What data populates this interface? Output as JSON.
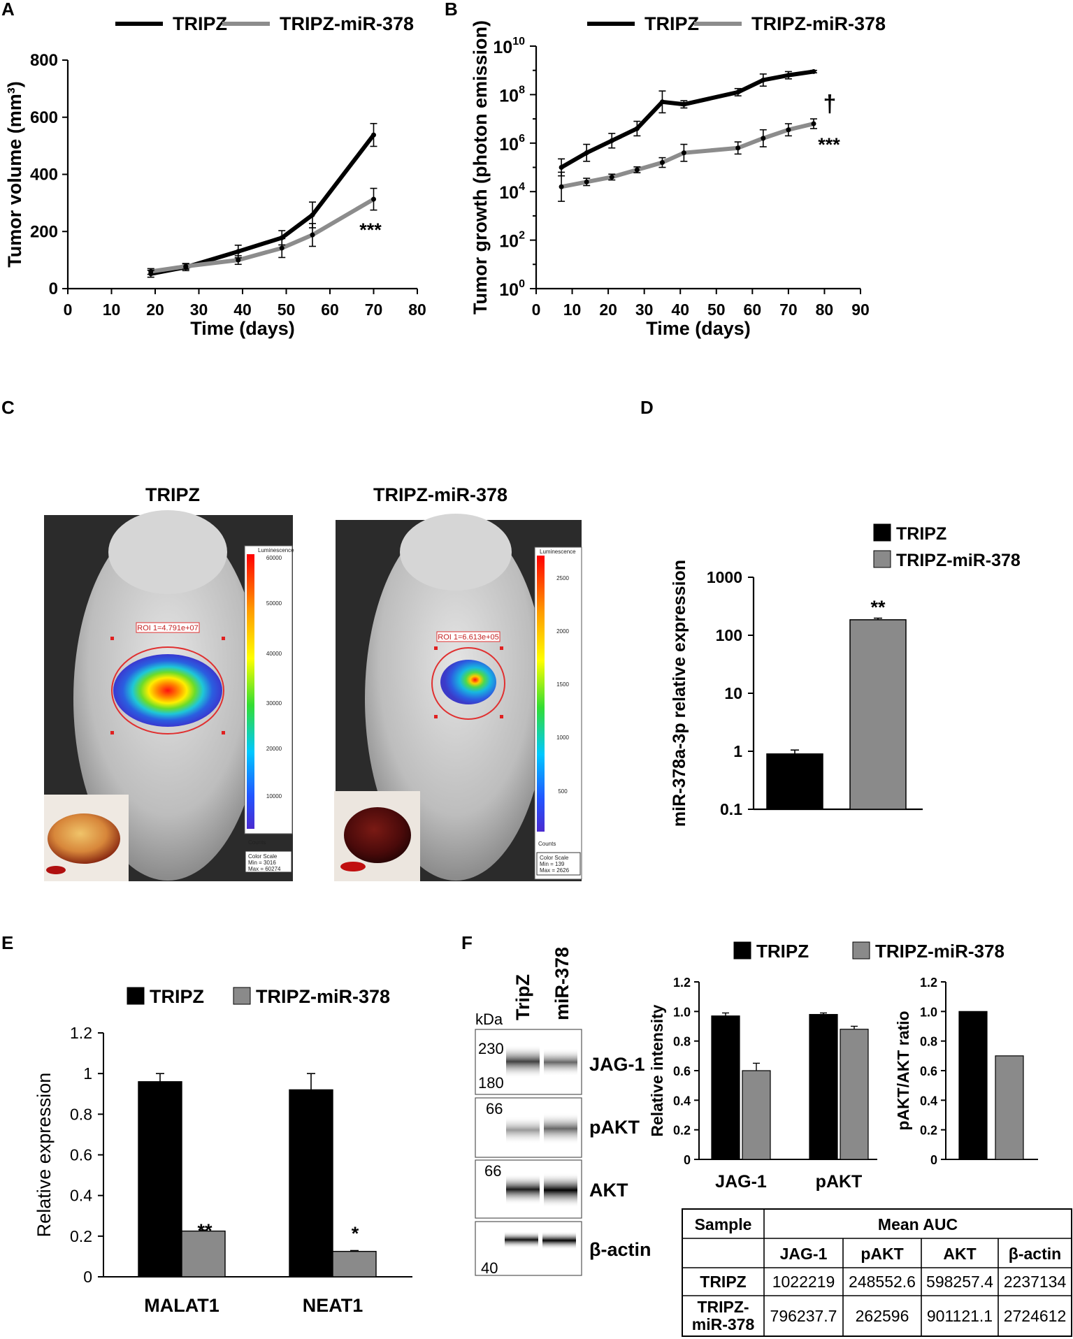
{
  "panel_labels": [
    "A",
    "B",
    "C",
    "D",
    "E",
    "F"
  ],
  "colors": {
    "tripz": "#000000",
    "mir378": "#8c8c8c",
    "mir378_bar": "#8a8a8a"
  },
  "chart_data": [
    {
      "panel": "A",
      "type": "line",
      "legend": [
        "TRIPZ",
        "TRIPZ-miR-378"
      ],
      "xlabel": "Time (days)",
      "ylabel": "Tumor volume (mm³)",
      "xlim": [
        0,
        80
      ],
      "ylim": [
        0,
        800
      ],
      "xticks": [
        "0",
        "10",
        "20",
        "30",
        "40",
        "50",
        "60",
        "70",
        "80"
      ],
      "yticks": [
        "0",
        "200",
        "400",
        "600",
        "800"
      ],
      "x": [
        19,
        27,
        39,
        49,
        56,
        70
      ],
      "series": [
        {
          "name": "TRIPZ",
          "values": [
            52,
            75,
            130,
            178,
            258,
            538
          ],
          "errors": [
            12,
            12,
            22,
            25,
            45,
            40
          ]
        },
        {
          "name": "TRIPZ-miR-378",
          "values": [
            60,
            78,
            100,
            142,
            188,
            313
          ],
          "errors": [
            10,
            10,
            15,
            33,
            40,
            38
          ]
        }
      ],
      "annotations": [
        "***"
      ]
    },
    {
      "panel": "B",
      "type": "line",
      "yscale": "log",
      "legend": [
        "TRIPZ",
        "TRIPZ-miR-378"
      ],
      "xlabel": "Time (days)",
      "ylabel": "Tumor growth (photon emission)",
      "xlim": [
        0,
        90
      ],
      "ylim_exp": [
        0,
        10
      ],
      "xticks": [
        "0",
        "10",
        "20",
        "30",
        "40",
        "50",
        "60",
        "70",
        "80",
        "90"
      ],
      "ytick_base": "10",
      "ytick_exponents": [
        "0",
        "2",
        "4",
        "6",
        "8",
        "10"
      ],
      "x": [
        7,
        14,
        21,
        28,
        35,
        41,
        56,
        63,
        70,
        77
      ],
      "series": [
        {
          "name": "TRIPZ",
          "log10_values": [
            5.0,
            5.6,
            6.1,
            6.6,
            7.7,
            7.6,
            8.1,
            8.6,
            8.8,
            8.95
          ]
        },
        {
          "name": "TRIPZ-miR-378",
          "log10_values": [
            4.2,
            4.4,
            4.6,
            4.9,
            5.2,
            5.6,
            5.8,
            6.2,
            6.55,
            6.8
          ]
        }
      ],
      "annotations": [
        "†",
        "***"
      ]
    },
    {
      "panel": "D",
      "type": "bar",
      "yscale": "log",
      "legend": [
        "TRIPZ",
        "TRIPZ-miR-378"
      ],
      "ylabel": "miR-378a-3p relative expression",
      "yticks": [
        "0.1",
        "1",
        "10",
        "100",
        "1000"
      ],
      "categories": [
        "TRIPZ",
        "TRIPZ-miR-378"
      ],
      "values": [
        0.9,
        185
      ],
      "errors": [
        0.15,
        12
      ],
      "annotations": [
        "**"
      ]
    },
    {
      "panel": "E",
      "type": "bar",
      "legend": [
        "TRIPZ",
        "TRIPZ-miR-378"
      ],
      "ylabel": "Relative expression",
      "ylim": [
        0,
        1.2
      ],
      "yticks": [
        "0",
        "0.2",
        "0.4",
        "0.6",
        "0.8",
        "1",
        "1.2"
      ],
      "categories": [
        "MALAT1",
        "NEAT1"
      ],
      "series": [
        {
          "name": "TRIPZ",
          "values": [
            0.96,
            0.92
          ],
          "errors": [
            0.04,
            0.08
          ]
        },
        {
          "name": "TRIPZ-miR-378",
          "values": [
            0.225,
            0.125
          ],
          "errors": [
            0.005,
            0.004
          ]
        }
      ],
      "annotations": [
        "**",
        "*"
      ]
    },
    {
      "panel": "F1",
      "type": "bar",
      "legend": [
        "TRIPZ",
        "TRIPZ-miR-378"
      ],
      "ylabel": "Relative intensity",
      "ylim": [
        0,
        1.2
      ],
      "yticks": [
        "0",
        "0.2",
        "0.4",
        "0.6",
        "0.8",
        "1.0",
        "1.2"
      ],
      "categories": [
        "JAG-1",
        "pAKT"
      ],
      "series": [
        {
          "name": "TRIPZ",
          "values": [
            0.97,
            0.98
          ],
          "errors": [
            0.02,
            0.01
          ]
        },
        {
          "name": "TRIPZ-miR-378",
          "values": [
            0.6,
            0.88
          ],
          "errors": [
            0.05,
            0.02
          ]
        }
      ]
    },
    {
      "panel": "F2",
      "type": "bar",
      "ylabel": "pAKT/AKT ratio",
      "ylim": [
        0,
        1.2
      ],
      "yticks": [
        "0",
        "0.2",
        "0.4",
        "0.6",
        "0.8",
        "1.0",
        "1.2"
      ],
      "categories": [
        "TRIPZ",
        "TRIPZ-miR-378"
      ],
      "values": [
        1.0,
        0.7
      ]
    },
    {
      "panel": "F-table",
      "type": "table",
      "title": "Mean AUC",
      "columns": [
        "Sample",
        "JAG-1",
        "pAKT",
        "AKT",
        "β-actin"
      ],
      "rows": [
        [
          "TRIPZ",
          "1022219",
          "248552.6",
          "598257.4",
          "2237134"
        ],
        [
          "TRIPZ-miR-378",
          "796237.7",
          "262596",
          "901121.1",
          "2724612"
        ]
      ]
    }
  ],
  "panel_c": {
    "titles": [
      "TRIPZ",
      "TRIPZ-miR-378"
    ],
    "roi": [
      "ROI 1=4.791e+07",
      "ROI 1=6.613e+05"
    ],
    "scale_title": "Luminescence",
    "scale_unit": "Counts",
    "scale_left_ticks": [
      "60000",
      "50000",
      "40000",
      "30000",
      "20000",
      "10000"
    ],
    "scale_right_ticks": [
      "2500",
      "2000",
      "1500",
      "1000",
      "500"
    ],
    "colorscale_left": [
      "Color Scale",
      "Min = 3016",
      "Max = 60274"
    ],
    "colorscale_right": [
      "Color Scale",
      "Min = 139",
      "Max = 2626"
    ]
  },
  "western": {
    "unit": "kDa",
    "lanes": [
      "TripZ",
      "miR-378"
    ],
    "bands": [
      "JAG-1",
      "pAKT",
      "AKT",
      "β-actin"
    ],
    "markers": [
      "230",
      "180",
      "66",
      "66",
      "40"
    ]
  }
}
